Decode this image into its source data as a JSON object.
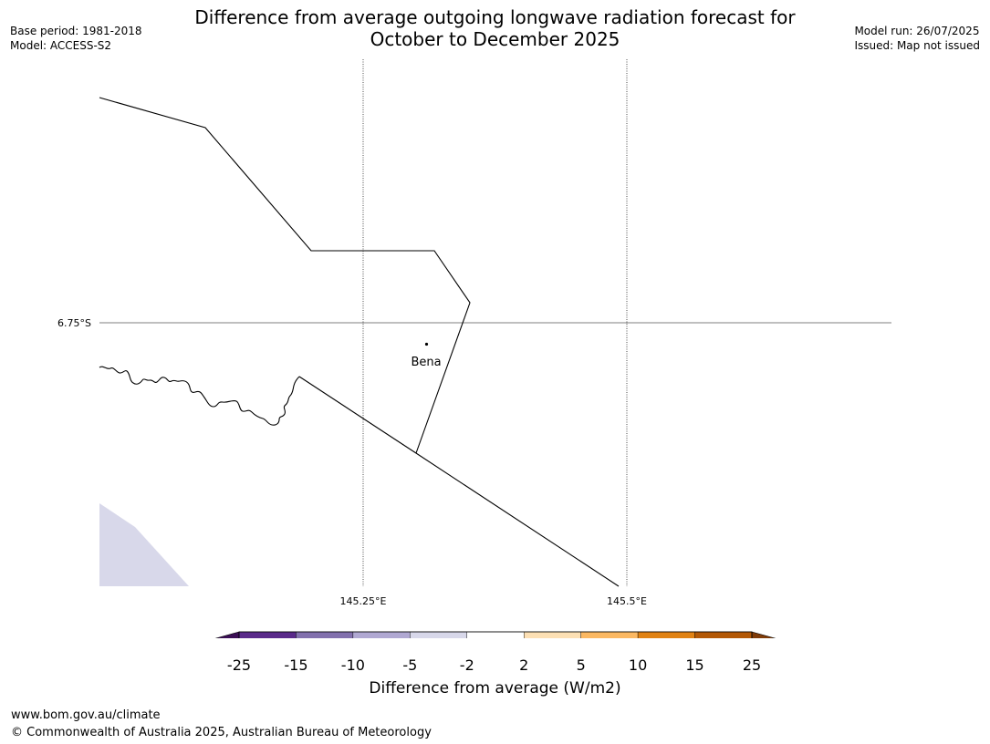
{
  "header": {
    "title_line1": "Difference from average outgoing longwave radiation forecast for",
    "title_line2": "October to December 2025",
    "base_period": "Base period: 1981-2018",
    "model": "Model: ACCESS-S2",
    "model_run": "Model run: 26/07/2025",
    "issued": "Issued: Map not issued"
  },
  "map": {
    "latitude_label": "6.75°S",
    "longitude_labels": [
      "145.25°E",
      "145.5°E"
    ],
    "place_label": "Bena"
  },
  "colorbar": {
    "label": "Difference from average (W/m2)",
    "ticks": [
      "-25",
      "-15",
      "-10",
      "-5",
      "-2",
      "2",
      "5",
      "10",
      "15",
      "25"
    ],
    "colors": {
      "below_min": "#3b0f55",
      "bins": [
        "#5a2a8a",
        "#8270ad",
        "#b0a8d2",
        "#d8d8ea",
        "#ffffff",
        "#fde0b4",
        "#fbb862",
        "#e08214",
        "#b35806"
      ],
      "above_max": "#7f3b08"
    }
  },
  "footer": {
    "url": "www.bom.gov.au/climate",
    "copyright": "© Commonwealth of Australia 2025, Australian Bureau of Meteorology"
  }
}
